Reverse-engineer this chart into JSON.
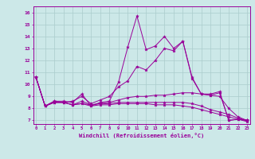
{
  "xlabel": "Windchill (Refroidissement éolien,°C)",
  "background_color": "#cce8e8",
  "grid_color": "#aacccc",
  "line_color": "#990099",
  "x_ticks": [
    0,
    1,
    2,
    3,
    4,
    5,
    6,
    7,
    8,
    9,
    10,
    11,
    12,
    13,
    14,
    15,
    16,
    17,
    18,
    19,
    20,
    21,
    22,
    23
  ],
  "ylim": [
    7,
    16
  ],
  "xlim": [
    0,
    23
  ],
  "yticks": [
    7,
    8,
    9,
    10,
    11,
    12,
    13,
    14,
    15,
    16
  ],
  "series": [
    [
      10.6,
      8.2,
      8.6,
      8.6,
      8.5,
      9.2,
      8.2,
      8.5,
      8.6,
      10.2,
      13.1,
      15.7,
      12.9,
      13.2,
      14.0,
      13.0,
      13.6,
      10.6,
      9.2,
      9.2,
      9.4,
      7.0,
      7.1,
      7.0
    ],
    [
      10.6,
      8.2,
      8.6,
      8.5,
      8.6,
      9.0,
      8.4,
      8.7,
      9.0,
      9.8,
      10.3,
      11.5,
      11.2,
      12.0,
      13.0,
      12.8,
      13.6,
      10.5,
      9.2,
      9.1,
      9.3,
      7.0,
      7.1,
      7.0
    ],
    [
      10.6,
      8.2,
      8.5,
      8.5,
      8.3,
      8.6,
      8.3,
      8.4,
      8.5,
      8.7,
      8.9,
      9.0,
      9.0,
      9.1,
      9.1,
      9.2,
      9.3,
      9.3,
      9.2,
      9.1,
      9.0,
      8.0,
      7.3,
      7.0
    ],
    [
      10.6,
      8.2,
      8.5,
      8.5,
      8.3,
      8.4,
      8.3,
      8.4,
      8.4,
      8.5,
      8.5,
      8.5,
      8.5,
      8.5,
      8.5,
      8.5,
      8.5,
      8.4,
      8.2,
      7.9,
      7.7,
      7.5,
      7.2,
      7.0
    ],
    [
      10.6,
      8.2,
      8.5,
      8.5,
      8.3,
      8.4,
      8.2,
      8.3,
      8.3,
      8.4,
      8.4,
      8.4,
      8.4,
      8.3,
      8.3,
      8.3,
      8.2,
      8.1,
      7.9,
      7.7,
      7.5,
      7.3,
      7.1,
      6.9
    ]
  ]
}
